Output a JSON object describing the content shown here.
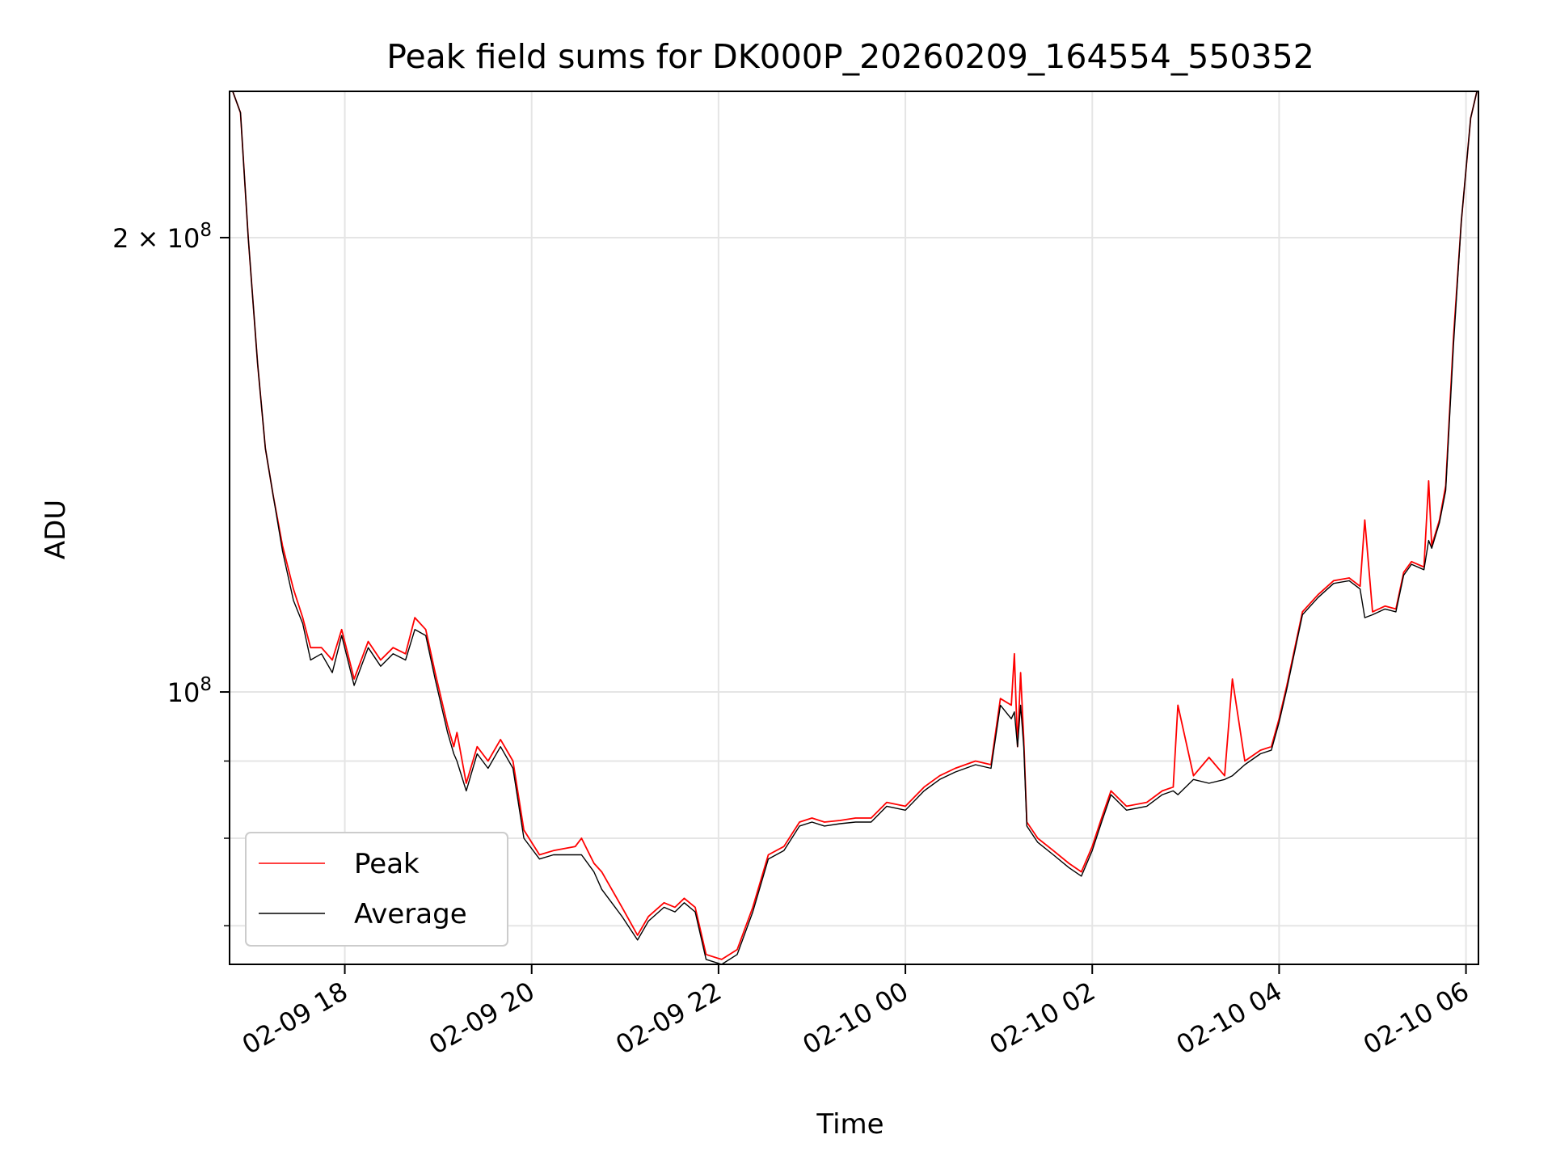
{
  "chart_data": {
    "type": "line",
    "title": "Peak field sums for DK000P_20260209_164554_550352",
    "xlabel": "Time",
    "ylabel": "ADU",
    "yscale": "log",
    "grid": true,
    "legend_position": "lower-left",
    "x_range": [
      "2026-02-09 16:46",
      "2026-02-10 06:08"
    ],
    "ylim": [
      66000000,
      250000000
    ],
    "x_ticks": [
      "02-09 18",
      "02-09 20",
      "02-09 22",
      "02-10 00",
      "02-10 02",
      "02-10 04",
      "02-10 06"
    ],
    "x_tick_times": [
      "2026-02-09 18:00",
      "2026-02-09 20:00",
      "2026-02-09 22:00",
      "2026-02-10 00:00",
      "2026-02-10 02:00",
      "2026-02-10 04:00",
      "2026-02-10 06:00"
    ],
    "y_ticks": [
      {
        "value": 200000000,
        "base": "2 × 10",
        "exp": "8"
      },
      {
        "value": 100000000,
        "base": "10",
        "exp": "8"
      }
    ],
    "y_minor_ticks": [
      70000000,
      80000000,
      90000000
    ],
    "series": [
      {
        "name": "Peak",
        "color": "#ff0000",
        "times": [
          "2026-02-09 16:48",
          "2026-02-09 16:53",
          "2026-02-09 16:58",
          "2026-02-09 17:04",
          "2026-02-09 17:09",
          "2026-02-09 17:14",
          "2026-02-09 17:20",
          "2026-02-09 17:27",
          "2026-02-09 17:33",
          "2026-02-09 17:38",
          "2026-02-09 17:45",
          "2026-02-09 17:52",
          "2026-02-09 17:58",
          "2026-02-09 18:06",
          "2026-02-09 18:15",
          "2026-02-09 18:23",
          "2026-02-09 18:31",
          "2026-02-09 18:39",
          "2026-02-09 18:45",
          "2026-02-09 18:52",
          "2026-02-09 18:58",
          "2026-02-09 19:06",
          "2026-02-09 19:10",
          "2026-02-09 19:12",
          "2026-02-09 19:18",
          "2026-02-09 19:25",
          "2026-02-09 19:32",
          "2026-02-09 19:40",
          "2026-02-09 19:48",
          "2026-02-09 19:55",
          "2026-02-09 20:05",
          "2026-02-09 20:14",
          "2026-02-09 20:28",
          "2026-02-09 20:32",
          "2026-02-09 20:40",
          "2026-02-09 20:45",
          "2026-02-09 20:58",
          "2026-02-09 21:08",
          "2026-02-09 21:15",
          "2026-02-09 21:25",
          "2026-02-09 21:32",
          "2026-02-09 21:38",
          "2026-02-09 21:45",
          "2026-02-09 21:52",
          "2026-02-09 22:02",
          "2026-02-09 22:12",
          "2026-02-09 22:22",
          "2026-02-09 22:32",
          "2026-02-09 22:42",
          "2026-02-09 22:52",
          "2026-02-09 23:00",
          "2026-02-09 23:08",
          "2026-02-09 23:18",
          "2026-02-09 23:28",
          "2026-02-09 23:38",
          "2026-02-09 23:48",
          "2026-02-10 00:00",
          "2026-02-10 00:12",
          "2026-02-10 00:22",
          "2026-02-10 00:32",
          "2026-02-10 00:45",
          "2026-02-10 00:55",
          "2026-02-10 01:01",
          "2026-02-10 01:08",
          "2026-02-10 01:10",
          "2026-02-10 01:12",
          "2026-02-10 01:14",
          "2026-02-10 01:16",
          "2026-02-10 01:18",
          "2026-02-10 01:25",
          "2026-02-10 01:35",
          "2026-02-10 01:45",
          "2026-02-10 01:53",
          "2026-02-10 02:00",
          "2026-02-10 02:06",
          "2026-02-10 02:12",
          "2026-02-10 02:22",
          "2026-02-10 02:35",
          "2026-02-10 02:45",
          "2026-02-10 02:52",
          "2026-02-10 02:55",
          "2026-02-10 03:05",
          "2026-02-10 03:15",
          "2026-02-10 03:25",
          "2026-02-10 03:30",
          "2026-02-10 03:38",
          "2026-02-10 03:48",
          "2026-02-10 03:55",
          "2026-02-10 04:00",
          "2026-02-10 04:05",
          "2026-02-10 04:15",
          "2026-02-10 04:25",
          "2026-02-10 04:35",
          "2026-02-10 04:45",
          "2026-02-10 04:52",
          "2026-02-10 04:55",
          "2026-02-10 05:00",
          "2026-02-10 05:08",
          "2026-02-10 05:15",
          "2026-02-10 05:20",
          "2026-02-10 05:25",
          "2026-02-10 05:33",
          "2026-02-10 05:36",
          "2026-02-10 05:38",
          "2026-02-10 05:43",
          "2026-02-10 05:47",
          "2026-02-10 05:52",
          "2026-02-10 05:57",
          "2026-02-10 06:03",
          "2026-02-10 06:07"
        ],
        "values": [
          250000000,
          242000000,
          200000000,
          165000000,
          145000000,
          135000000,
          125000000,
          117000000,
          112000000,
          107000000,
          107000000,
          105000000,
          110000000,
          102000000,
          108000000,
          105000000,
          107000000,
          106000000,
          112000000,
          110000000,
          103000000,
          95000000,
          92000000,
          94000000,
          87000000,
          92000000,
          90000000,
          93000000,
          90000000,
          81000000,
          78000000,
          78500000,
          79000000,
          80000000,
          77000000,
          76000000,
          72000000,
          69000000,
          71000000,
          72500000,
          72000000,
          73000000,
          72000000,
          67000000,
          66500000,
          67500000,
          72000000,
          78000000,
          79000000,
          82000000,
          82500000,
          82000000,
          82200000,
          82500000,
          82500000,
          84500000,
          84000000,
          86500000,
          88000000,
          89000000,
          90000000,
          89500000,
          99000000,
          98000000,
          106000000,
          92000000,
          103000000,
          93000000,
          82000000,
          80000000,
          78500000,
          77000000,
          76000000,
          79000000,
          82500000,
          86000000,
          84000000,
          84500000,
          86000000,
          86500000,
          98000000,
          88000000,
          90500000,
          88000000,
          102000000,
          90000000,
          91500000,
          92000000,
          96000000,
          101000000,
          113000000,
          116000000,
          118500000,
          119000000,
          117500000,
          130000000,
          113000000,
          114000000,
          113500000,
          120000000,
          122000000,
          121000000,
          138000000,
          125000000,
          130000000,
          137000000,
          172000000,
          205000000,
          240000000,
          250000000
        ]
      },
      {
        "name": "Average",
        "color": "#000000",
        "times": [
          "2026-02-09 16:48",
          "2026-02-09 16:53",
          "2026-02-09 16:58",
          "2026-02-09 17:04",
          "2026-02-09 17:09",
          "2026-02-09 17:14",
          "2026-02-09 17:20",
          "2026-02-09 17:27",
          "2026-02-09 17:33",
          "2026-02-09 17:38",
          "2026-02-09 17:45",
          "2026-02-09 17:52",
          "2026-02-09 17:58",
          "2026-02-09 18:06",
          "2026-02-09 18:15",
          "2026-02-09 18:23",
          "2026-02-09 18:31",
          "2026-02-09 18:39",
          "2026-02-09 18:45",
          "2026-02-09 18:52",
          "2026-02-09 18:58",
          "2026-02-09 19:06",
          "2026-02-09 19:10",
          "2026-02-09 19:12",
          "2026-02-09 19:18",
          "2026-02-09 19:25",
          "2026-02-09 19:32",
          "2026-02-09 19:40",
          "2026-02-09 19:48",
          "2026-02-09 19:55",
          "2026-02-09 20:05",
          "2026-02-09 20:14",
          "2026-02-09 20:28",
          "2026-02-09 20:32",
          "2026-02-09 20:40",
          "2026-02-09 20:45",
          "2026-02-09 20:58",
          "2026-02-09 21:08",
          "2026-02-09 21:15",
          "2026-02-09 21:25",
          "2026-02-09 21:32",
          "2026-02-09 21:38",
          "2026-02-09 21:45",
          "2026-02-09 21:52",
          "2026-02-09 22:02",
          "2026-02-09 22:12",
          "2026-02-09 22:22",
          "2026-02-09 22:32",
          "2026-02-09 22:42",
          "2026-02-09 22:52",
          "2026-02-09 23:00",
          "2026-02-09 23:08",
          "2026-02-09 23:18",
          "2026-02-09 23:28",
          "2026-02-09 23:38",
          "2026-02-09 23:48",
          "2026-02-10 00:00",
          "2026-02-10 00:12",
          "2026-02-10 00:22",
          "2026-02-10 00:32",
          "2026-02-10 00:45",
          "2026-02-10 00:55",
          "2026-02-10 01:01",
          "2026-02-10 01:08",
          "2026-02-10 01:10",
          "2026-02-10 01:12",
          "2026-02-10 01:14",
          "2026-02-10 01:16",
          "2026-02-10 01:18",
          "2026-02-10 01:25",
          "2026-02-10 01:35",
          "2026-02-10 01:45",
          "2026-02-10 01:53",
          "2026-02-10 02:00",
          "2026-02-10 02:06",
          "2026-02-10 02:12",
          "2026-02-10 02:22",
          "2026-02-10 02:35",
          "2026-02-10 02:45",
          "2026-02-10 02:52",
          "2026-02-10 02:55",
          "2026-02-10 03:05",
          "2026-02-10 03:15",
          "2026-02-10 03:25",
          "2026-02-10 03:30",
          "2026-02-10 03:38",
          "2026-02-10 03:48",
          "2026-02-10 03:55",
          "2026-02-10 04:00",
          "2026-02-10 04:05",
          "2026-02-10 04:15",
          "2026-02-10 04:25",
          "2026-02-10 04:35",
          "2026-02-10 04:45",
          "2026-02-10 04:52",
          "2026-02-10 04:55",
          "2026-02-10 05:00",
          "2026-02-10 05:08",
          "2026-02-10 05:15",
          "2026-02-10 05:20",
          "2026-02-10 05:25",
          "2026-02-10 05:33",
          "2026-02-10 05:36",
          "2026-02-10 05:38",
          "2026-02-10 05:43",
          "2026-02-10 05:47",
          "2026-02-10 05:52",
          "2026-02-10 05:57",
          "2026-02-10 06:03",
          "2026-02-10 06:07"
        ],
        "values": [
          250000000,
          242000000,
          200000000,
          165000000,
          145000000,
          135000000,
          124000000,
          115000000,
          111000000,
          105000000,
          106000000,
          103000000,
          109000000,
          101000000,
          107000000,
          104000000,
          106000000,
          105000000,
          110000000,
          109000000,
          102000000,
          94000000,
          91000000,
          90000000,
          86000000,
          91000000,
          89000000,
          92000000,
          89000000,
          80000000,
          77500000,
          78000000,
          78000000,
          78000000,
          76000000,
          74000000,
          71000000,
          68500000,
          70500000,
          72000000,
          71500000,
          72500000,
          71500000,
          66500000,
          66000000,
          67000000,
          71500000,
          77500000,
          78500000,
          81500000,
          82000000,
          81500000,
          81800000,
          82000000,
          82000000,
          84000000,
          83500000,
          86000000,
          87500000,
          88500000,
          89500000,
          89000000,
          98000000,
          96000000,
          97000000,
          92000000,
          98000000,
          92000000,
          81500000,
          79500000,
          78000000,
          76500000,
          75500000,
          78500000,
          82000000,
          85500000,
          83500000,
          84000000,
          85500000,
          86000000,
          85500000,
          87500000,
          87000000,
          87500000,
          88000000,
          89500000,
          91000000,
          91500000,
          95500000,
          100500000,
          112500000,
          115500000,
          118000000,
          118500000,
          117000000,
          112000000,
          112500000,
          113500000,
          113000000,
          119500000,
          121500000,
          120500000,
          126000000,
          124500000,
          129500000,
          136000000,
          170000000,
          205000000,
          240000000,
          250000000
        ]
      }
    ]
  }
}
